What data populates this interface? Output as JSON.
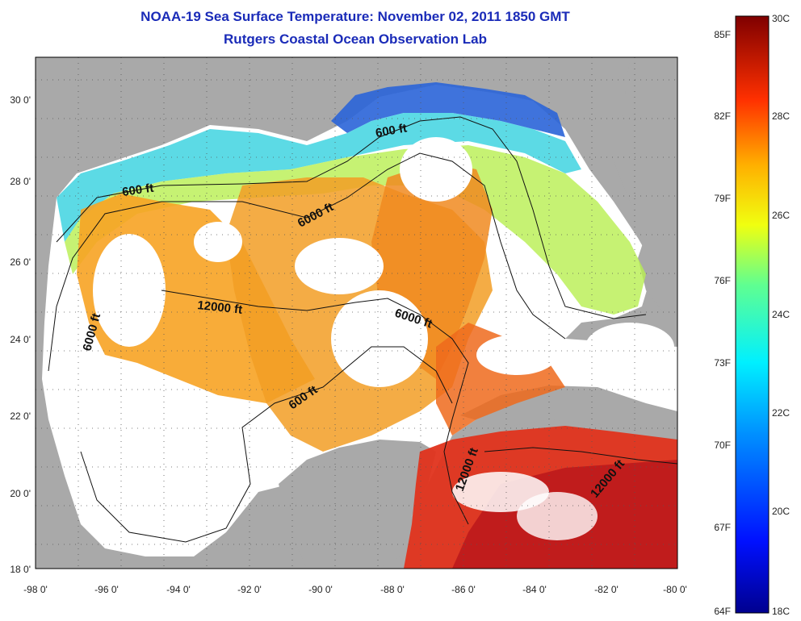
{
  "title": {
    "line1": "NOAA-19 Sea Surface Temperature:  November 02, 2011 1850 GMT",
    "line2": "Rutgers Coastal Ocean Observation Lab"
  },
  "map": {
    "lon_ticks": [
      "-98 0'",
      "-96 0'",
      "-94 0'",
      "-92 0'",
      "-90 0'",
      "-88 0'",
      "-86 0'",
      "-84 0'",
      "-82 0'",
      "-80 0'"
    ],
    "lat_ticks": [
      "30 0'",
      "28 0'",
      "26 0'",
      "24 0'",
      "22 0'",
      "20 0'",
      "18 0'"
    ],
    "contour_labels": [
      "600 ft",
      "600 ft",
      "6000 ft",
      "12000 ft",
      "6000 ft",
      "6000 ft",
      "600 ft",
      "12000 ft",
      "12000 ft"
    ],
    "colors": {
      "land": "#a9a9a9",
      "cloud": "#ffffff",
      "cold": "#1240c8",
      "cyan": "#33d1e6",
      "warm": "#f3a21d",
      "hot": "#e2311c"
    }
  },
  "colorbar": {
    "fahrenheit": [
      "85F",
      "82F",
      "79F",
      "76F",
      "73F",
      "70F",
      "67F",
      "64F"
    ],
    "celsius": [
      "30C",
      "28C",
      "26C",
      "24C",
      "22C",
      "20C",
      "18C"
    ]
  }
}
